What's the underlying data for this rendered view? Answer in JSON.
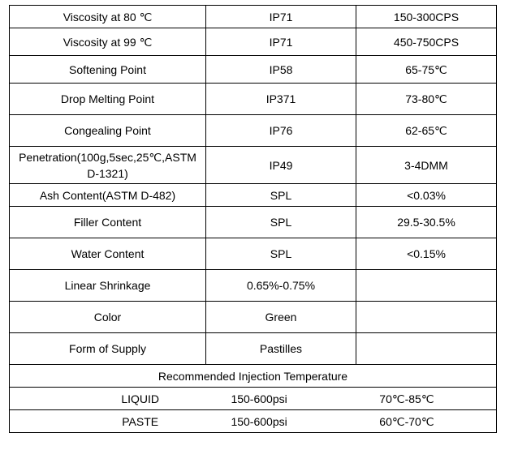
{
  "rows": [
    {
      "property": "Viscosity at 80 ℃",
      "method": "IP71",
      "value": "150-300CPS"
    },
    {
      "property": "Viscosity at 99 ℃",
      "method": "IP71",
      "value": "450-750CPS"
    },
    {
      "property": "Softening Point",
      "method": "IP58",
      "value": "65-75℃"
    },
    {
      "property": "Drop Melting Point",
      "method": "IP371",
      "value": "73-80℃"
    },
    {
      "property": "Congealing Point",
      "method": "IP76",
      "value": "62-65℃"
    },
    {
      "property": "Penetration(100g,5sec,25℃,ASTM D-1321)",
      "method": "IP49",
      "value": "3-4DMM"
    },
    {
      "property": "Ash Content(ASTM D-482)",
      "method": "SPL",
      "value": "<0.03%"
    },
    {
      "property": "Filler Content",
      "method": "SPL",
      "value": "29.5-30.5%"
    },
    {
      "property": "Water Content",
      "method": "SPL",
      "value": "<0.15%"
    },
    {
      "property": "Linear Shrinkage",
      "method": "0.65%-0.75%",
      "value": ""
    },
    {
      "property": "Color",
      "method": "Green",
      "value": ""
    },
    {
      "property": "Form of Supply",
      "method": "Pastilles",
      "value": ""
    }
  ],
  "injection": {
    "title": "Recommended Injection Temperature",
    "rows": [
      {
        "type": "LIQUID",
        "pressure": "150-600psi",
        "temperature": "70℃-85℃"
      },
      {
        "type": "PASTE",
        "pressure": "150-600psi",
        "temperature": "60℃-70℃"
      }
    ]
  }
}
